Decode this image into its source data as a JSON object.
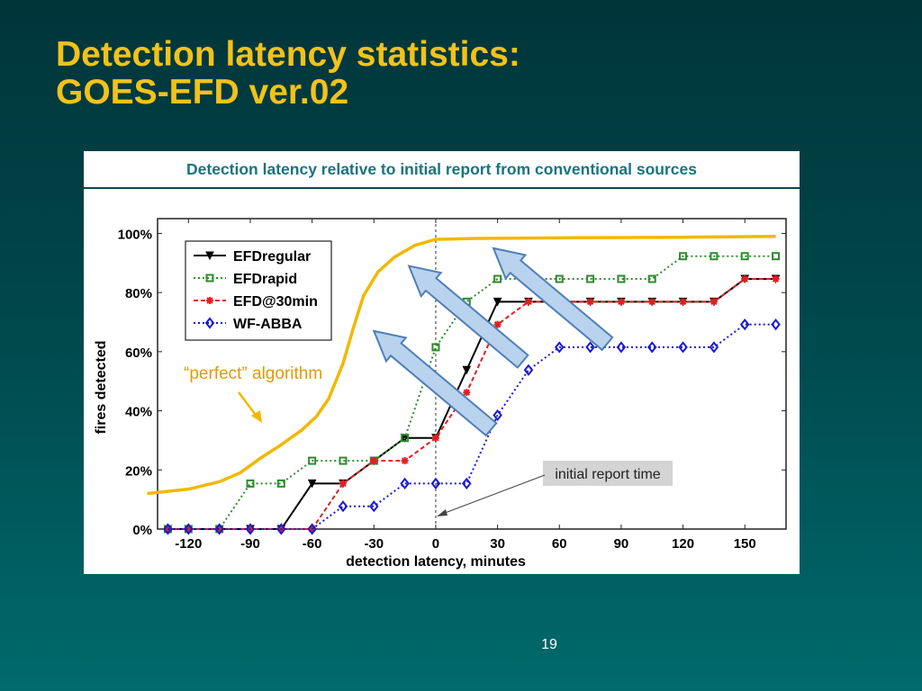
{
  "slide": {
    "title_line1": "Detection latency statistics:",
    "title_line2": "GOES-EFD ver.02",
    "caption": "Detection latency relative to initial report from conventional sources",
    "page_number": "19"
  },
  "colors": {
    "title": "#f2c21a",
    "caption": "#17757f",
    "EFDregular": "#000000",
    "EFDrapid": "#2e8b2e",
    "EFD@30min": "#e02020",
    "WF-ABBA": "#1a1ad0",
    "perfect": "#f2b800",
    "arrows_fill": "#b9d3ee",
    "arrows_stroke": "#4f7fb8"
  },
  "chart_data": {
    "type": "line",
    "xlabel": "detection latency, minutes",
    "ylabel": "fires detected",
    "xlim": [
      -135,
      170
    ],
    "ylim": [
      0,
      105
    ],
    "x_ticks": [
      -120,
      -90,
      -60,
      -30,
      0,
      30,
      60,
      90,
      120,
      150
    ],
    "x_tick_labels": [
      "-120",
      "-90",
      "-60",
      "-30",
      "0",
      "30",
      "60",
      "90",
      "120",
      "150"
    ],
    "y_ticks": [
      0,
      20,
      40,
      60,
      80,
      100
    ],
    "y_tick_labels": [
      "0%",
      "20%",
      "40%",
      "60%",
      "80%",
      "100%"
    ],
    "legend_position": "top-left",
    "series": [
      {
        "name": "EFDregular",
        "color": "#000000",
        "marker": "triangle-down",
        "linestyle": "solid",
        "x": [
          -130,
          -120,
          -105,
          -90,
          -75,
          -60,
          -45,
          -30,
          -15,
          0,
          15,
          30,
          45,
          60,
          75,
          90,
          105,
          120,
          135,
          150,
          165
        ],
        "y": [
          0,
          0,
          0,
          0,
          0,
          15.4,
          15.4,
          23.1,
          30.8,
          30.8,
          53.8,
          76.9,
          76.9,
          76.9,
          76.9,
          76.9,
          76.9,
          76.9,
          76.9,
          84.6,
          84.6
        ]
      },
      {
        "name": "EFDrapid",
        "color": "#2e8b2e",
        "marker": "square",
        "linestyle": "dotted",
        "x": [
          -130,
          -120,
          -105,
          -90,
          -75,
          -60,
          -45,
          -30,
          -15,
          0,
          15,
          30,
          45,
          60,
          75,
          90,
          105,
          120,
          135,
          150,
          165
        ],
        "y": [
          0,
          0,
          0,
          15.4,
          15.4,
          23.1,
          23.1,
          23.1,
          30.8,
          61.5,
          76.9,
          84.6,
          84.6,
          84.6,
          84.6,
          84.6,
          84.6,
          92.3,
          92.3,
          92.3,
          92.3
        ]
      },
      {
        "name": "EFD@30min",
        "color": "#e02020",
        "marker": "asterisk",
        "linestyle": "dashed",
        "x": [
          -130,
          -120,
          -105,
          -90,
          -75,
          -60,
          -45,
          -30,
          -15,
          0,
          15,
          30,
          45,
          60,
          75,
          90,
          105,
          120,
          135,
          150,
          165
        ],
        "y": [
          0,
          0,
          0,
          0,
          0,
          0,
          15.4,
          23.1,
          23.1,
          30.8,
          46.2,
          69.2,
          76.9,
          76.9,
          76.9,
          76.9,
          76.9,
          76.9,
          76.9,
          84.6,
          84.6
        ]
      },
      {
        "name": "WF-ABBA",
        "color": "#1a1ad0",
        "marker": "diamond",
        "linestyle": "dotted",
        "x": [
          -130,
          -120,
          -105,
          -90,
          -75,
          -60,
          -45,
          -30,
          -15,
          0,
          15,
          30,
          45,
          60,
          75,
          90,
          105,
          120,
          135,
          150,
          165
        ],
        "y": [
          0,
          0,
          0,
          0,
          0,
          0,
          7.7,
          7.7,
          15.4,
          15.4,
          15.4,
          38.5,
          53.8,
          61.5,
          61.5,
          61.5,
          61.5,
          61.5,
          61.5,
          69.2,
          69.2
        ]
      }
    ],
    "perfect_curve": {
      "color": "#f2b800",
      "x": [
        -140,
        -120,
        -105,
        -95,
        -85,
        -75,
        -65,
        -58,
        -52,
        -45,
        -40,
        -35,
        -28,
        -20,
        -10,
        0,
        20,
        60,
        120,
        165
      ],
      "y": [
        12,
        13.5,
        16,
        19,
        24,
        28.5,
        33.5,
        38,
        44,
        56,
        68,
        79,
        87,
        92,
        96,
        98,
        98.3,
        98.5,
        98.7,
        99
      ]
    },
    "annotations": {
      "perfect_label": "“perfect” algorithm",
      "initial_report_label": "initial report time"
    }
  }
}
